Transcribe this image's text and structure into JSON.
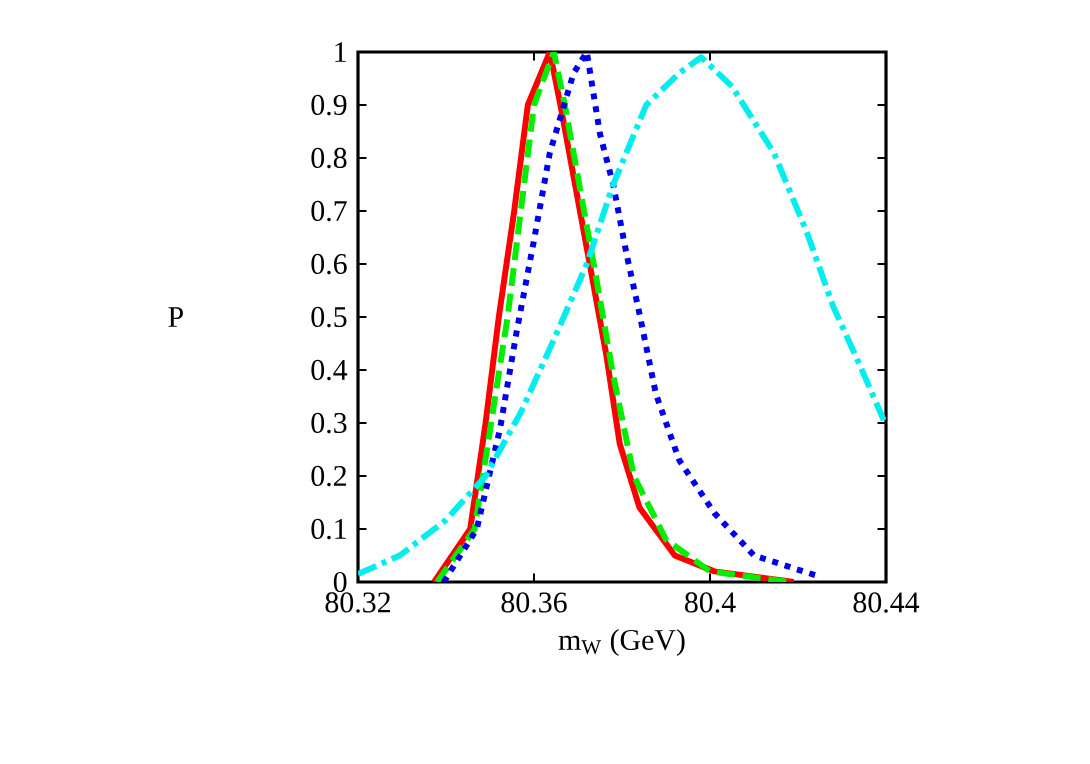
{
  "chart_data": {
    "type": "line",
    "xlabel": "m$_{W}$ (GeV)",
    "ylabel": "P",
    "xlim": [
      80.32,
      80.44
    ],
    "ylim": [
      0,
      1
    ],
    "xticks": [
      80.32,
      80.36,
      80.4,
      80.44
    ],
    "yticks": [
      0,
      0.1,
      0.2,
      0.3,
      0.4,
      0.5,
      0.6,
      0.7,
      0.8,
      0.9,
      1
    ],
    "grid": false,
    "marker": "none",
    "series": [
      {
        "color": "#ff0000",
        "line_style": "solid",
        "x": [
          80.3373,
          80.3455,
          80.349,
          80.352,
          80.3555,
          80.3586,
          80.3636,
          80.366,
          80.372,
          80.3764,
          80.3795,
          80.384,
          80.392,
          80.401,
          80.419
        ],
        "values": [
          0,
          0.1,
          0.3,
          0.5,
          0.7,
          0.9,
          1,
          0.9,
          0.63,
          0.43,
          0.26,
          0.14,
          0.05,
          0.02,
          0
        ]
      },
      {
        "color": "#00ee00",
        "line_style": "dashed",
        "x": [
          80.338,
          80.3465,
          80.354,
          80.36,
          80.3645,
          80.367,
          80.374,
          80.378,
          80.3827,
          80.39,
          80.4,
          80.418
        ],
        "values": [
          0,
          0.1,
          0.5,
          0.9,
          1,
          0.9,
          0.58,
          0.39,
          0.2,
          0.08,
          0.02,
          0
        ]
      },
      {
        "color": "#0000ee",
        "line_style": "dotted",
        "x": [
          80.3395,
          80.347,
          80.3523,
          80.356,
          80.36,
          80.3636,
          80.369,
          80.372,
          80.375,
          80.378,
          80.381,
          80.384,
          80.3877,
          80.393,
          80.401,
          80.41,
          80.425
        ],
        "values": [
          0,
          0.1,
          0.29,
          0.47,
          0.645,
          0.81,
          0.96,
          1,
          0.845,
          0.75,
          0.62,
          0.505,
          0.355,
          0.23,
          0.13,
          0.05,
          0.01
        ]
      },
      {
        "color": "#00eeee",
        "line_style": "dashdotted",
        "x": [
          80.32,
          80.3295,
          80.34,
          80.349,
          80.357,
          80.3645,
          80.372,
          80.378,
          80.3855,
          80.393,
          80.398,
          80.405,
          80.4145,
          80.422,
          80.428,
          80.434,
          80.4395
        ],
        "values": [
          0.015,
          0.05,
          0.117,
          0.2,
          0.32,
          0.457,
          0.6,
          0.75,
          0.9,
          0.96,
          0.99,
          0.935,
          0.81,
          0.66,
          0.52,
          0.41,
          0.305
        ]
      }
    ]
  }
}
